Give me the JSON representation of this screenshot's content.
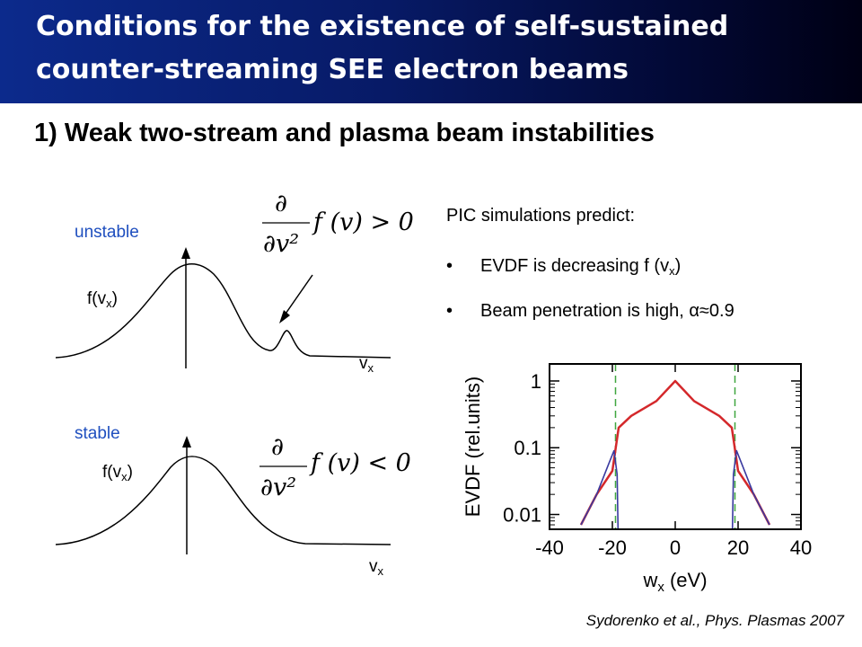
{
  "header": {
    "title_line1": "Conditions for the existence of self-sustained",
    "title_line2": "counter-streaming SEE electron beams"
  },
  "subtitle": "1) Weak two-stream and plasma beam instabilities",
  "unstable_panel": {
    "label": "unstable",
    "ylabel_main": "f(v",
    "ylabel_sub": "x",
    "ylabel_close": ")",
    "xlabel_main": "v",
    "xlabel_sub": "x",
    "eq_partial": "∂",
    "eq_denom": "∂v²",
    "eq_func": "f (v) > 0"
  },
  "stable_panel": {
    "label": "stable",
    "ylabel_main": "f(v",
    "ylabel_sub": "x",
    "ylabel_close": ")",
    "xlabel_main": "v",
    "xlabel_sub": "x",
    "eq_partial": "∂",
    "eq_denom": "∂v²",
    "eq_func": "f (v) < 0"
  },
  "pic": {
    "intro": "PIC simulations predict:",
    "bullet_symbol": "•",
    "bullet1_main": "EVDF is decreasing f (v",
    "bullet1_sub": "x",
    "bullet1_close": ")",
    "bullet2": "Beam penetration is high, α≈0.9"
  },
  "chart_data": {
    "type": "line",
    "ylabel": "EVDF (rel.units)",
    "xlabel_main": "w",
    "xlabel_sub": "x",
    "xlabel_unit": " (eV)",
    "x_ticks": [
      -40,
      -20,
      0,
      20,
      40
    ],
    "y_ticks": [
      1,
      0.1,
      0.01
    ],
    "y_tick_labels": [
      "1",
      "0.1",
      "0.01"
    ],
    "xlim": [
      -40,
      40
    ],
    "ylim": [
      0.006,
      1.8
    ],
    "yscale": "log",
    "dashed_lines_x": [
      -19,
      19
    ],
    "series": [
      {
        "color": "#d4282b",
        "x": [
          -30,
          -25,
          -20,
          -18,
          -14,
          -6,
          0,
          6,
          14,
          18,
          20,
          25,
          30
        ],
        "y": [
          0.007,
          0.02,
          0.045,
          0.2,
          0.3,
          0.5,
          1.0,
          0.5,
          0.3,
          0.2,
          0.045,
          0.02,
          0.007
        ]
      },
      {
        "color": "#3a3aa0",
        "x": [
          -30,
          -25,
          -21,
          -19.5,
          -18.5,
          -18.2,
          18.2,
          18.5,
          19.5,
          21,
          25,
          30
        ],
        "y": [
          0.007,
          0.02,
          0.06,
          0.09,
          0.04,
          0.006,
          0.006,
          0.04,
          0.09,
          0.06,
          0.02,
          0.007
        ]
      }
    ]
  },
  "citation": "Sydorenko et al., Phys. Plasmas 2007"
}
